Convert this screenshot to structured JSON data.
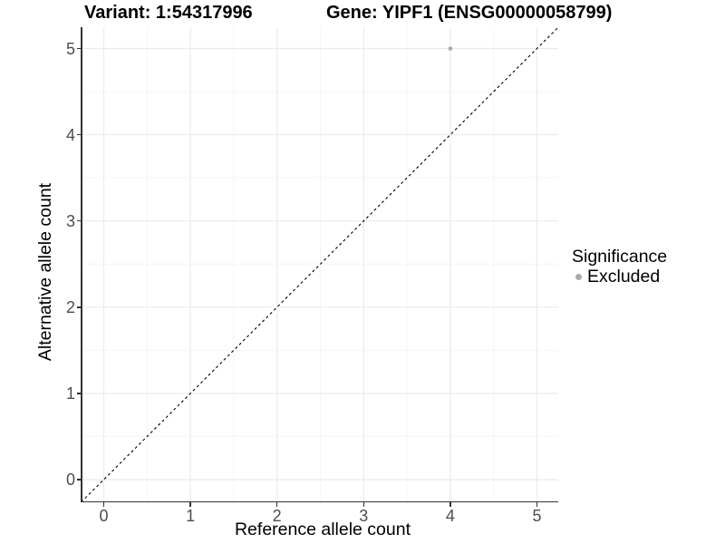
{
  "chart_data": {
    "type": "scatter",
    "titles": {
      "variant": "Variant: 1:54317996",
      "gene": "Gene: YIPF1 (ENSG00000058799)"
    },
    "xlabel": "Reference allele count",
    "ylabel": "Alternative allele count",
    "x_ticks": [
      "0",
      "1",
      "2",
      "3",
      "4",
      "5"
    ],
    "y_ticks": [
      "0",
      "1",
      "2",
      "3",
      "4",
      "5"
    ],
    "xlim": [
      -0.25,
      5.25
    ],
    "ylim": [
      -0.25,
      5.25
    ],
    "grid": {
      "major": true,
      "minor": true
    },
    "points": [
      {
        "x": 4,
        "y": 5,
        "significance": "Excluded"
      }
    ],
    "diagonal_line": {
      "equation": "y = x",
      "style": "dashed",
      "color": "#000000"
    },
    "legend": {
      "title": "Significance",
      "position": "right",
      "entries": [
        {
          "label": "Excluded",
          "marker": "circle",
          "color": "#a9a9a9"
        }
      ]
    },
    "colors": {
      "point": "#a9a9a9",
      "axis": "#333333",
      "tick_label": "#4d4d4d",
      "grid_major": "#ebebeb",
      "grid_minor": "#f5f5f5",
      "background": "#ffffff"
    }
  }
}
